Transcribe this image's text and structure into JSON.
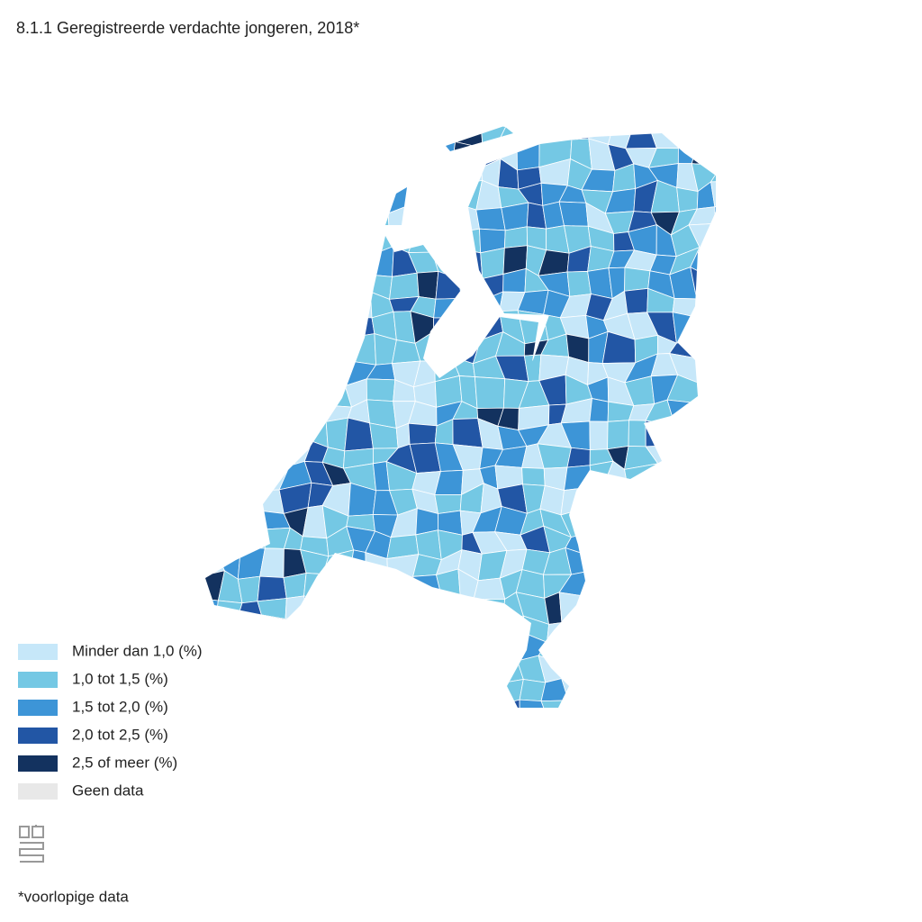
{
  "title": "8.1.1 Geregistreerde verdachte jongeren, 2018*",
  "legend": [
    {
      "label": "Minder dan 1,0 (%)",
      "color": "#c6e7f9"
    },
    {
      "label": "1,0 tot 1,5 (%)",
      "color": "#74c8e4"
    },
    {
      "label": "1,5 tot 2,0 (%)",
      "color": "#3d95d7"
    },
    {
      "label": "2,0 tot 2,5 (%)",
      "color": "#2256a5"
    },
    {
      "label": "2,5 of meer (%)",
      "color": "#13325f"
    },
    {
      "label": "Geen data",
      "color": "#e8e8e8"
    }
  ],
  "footnote": "*voorlopige data"
}
